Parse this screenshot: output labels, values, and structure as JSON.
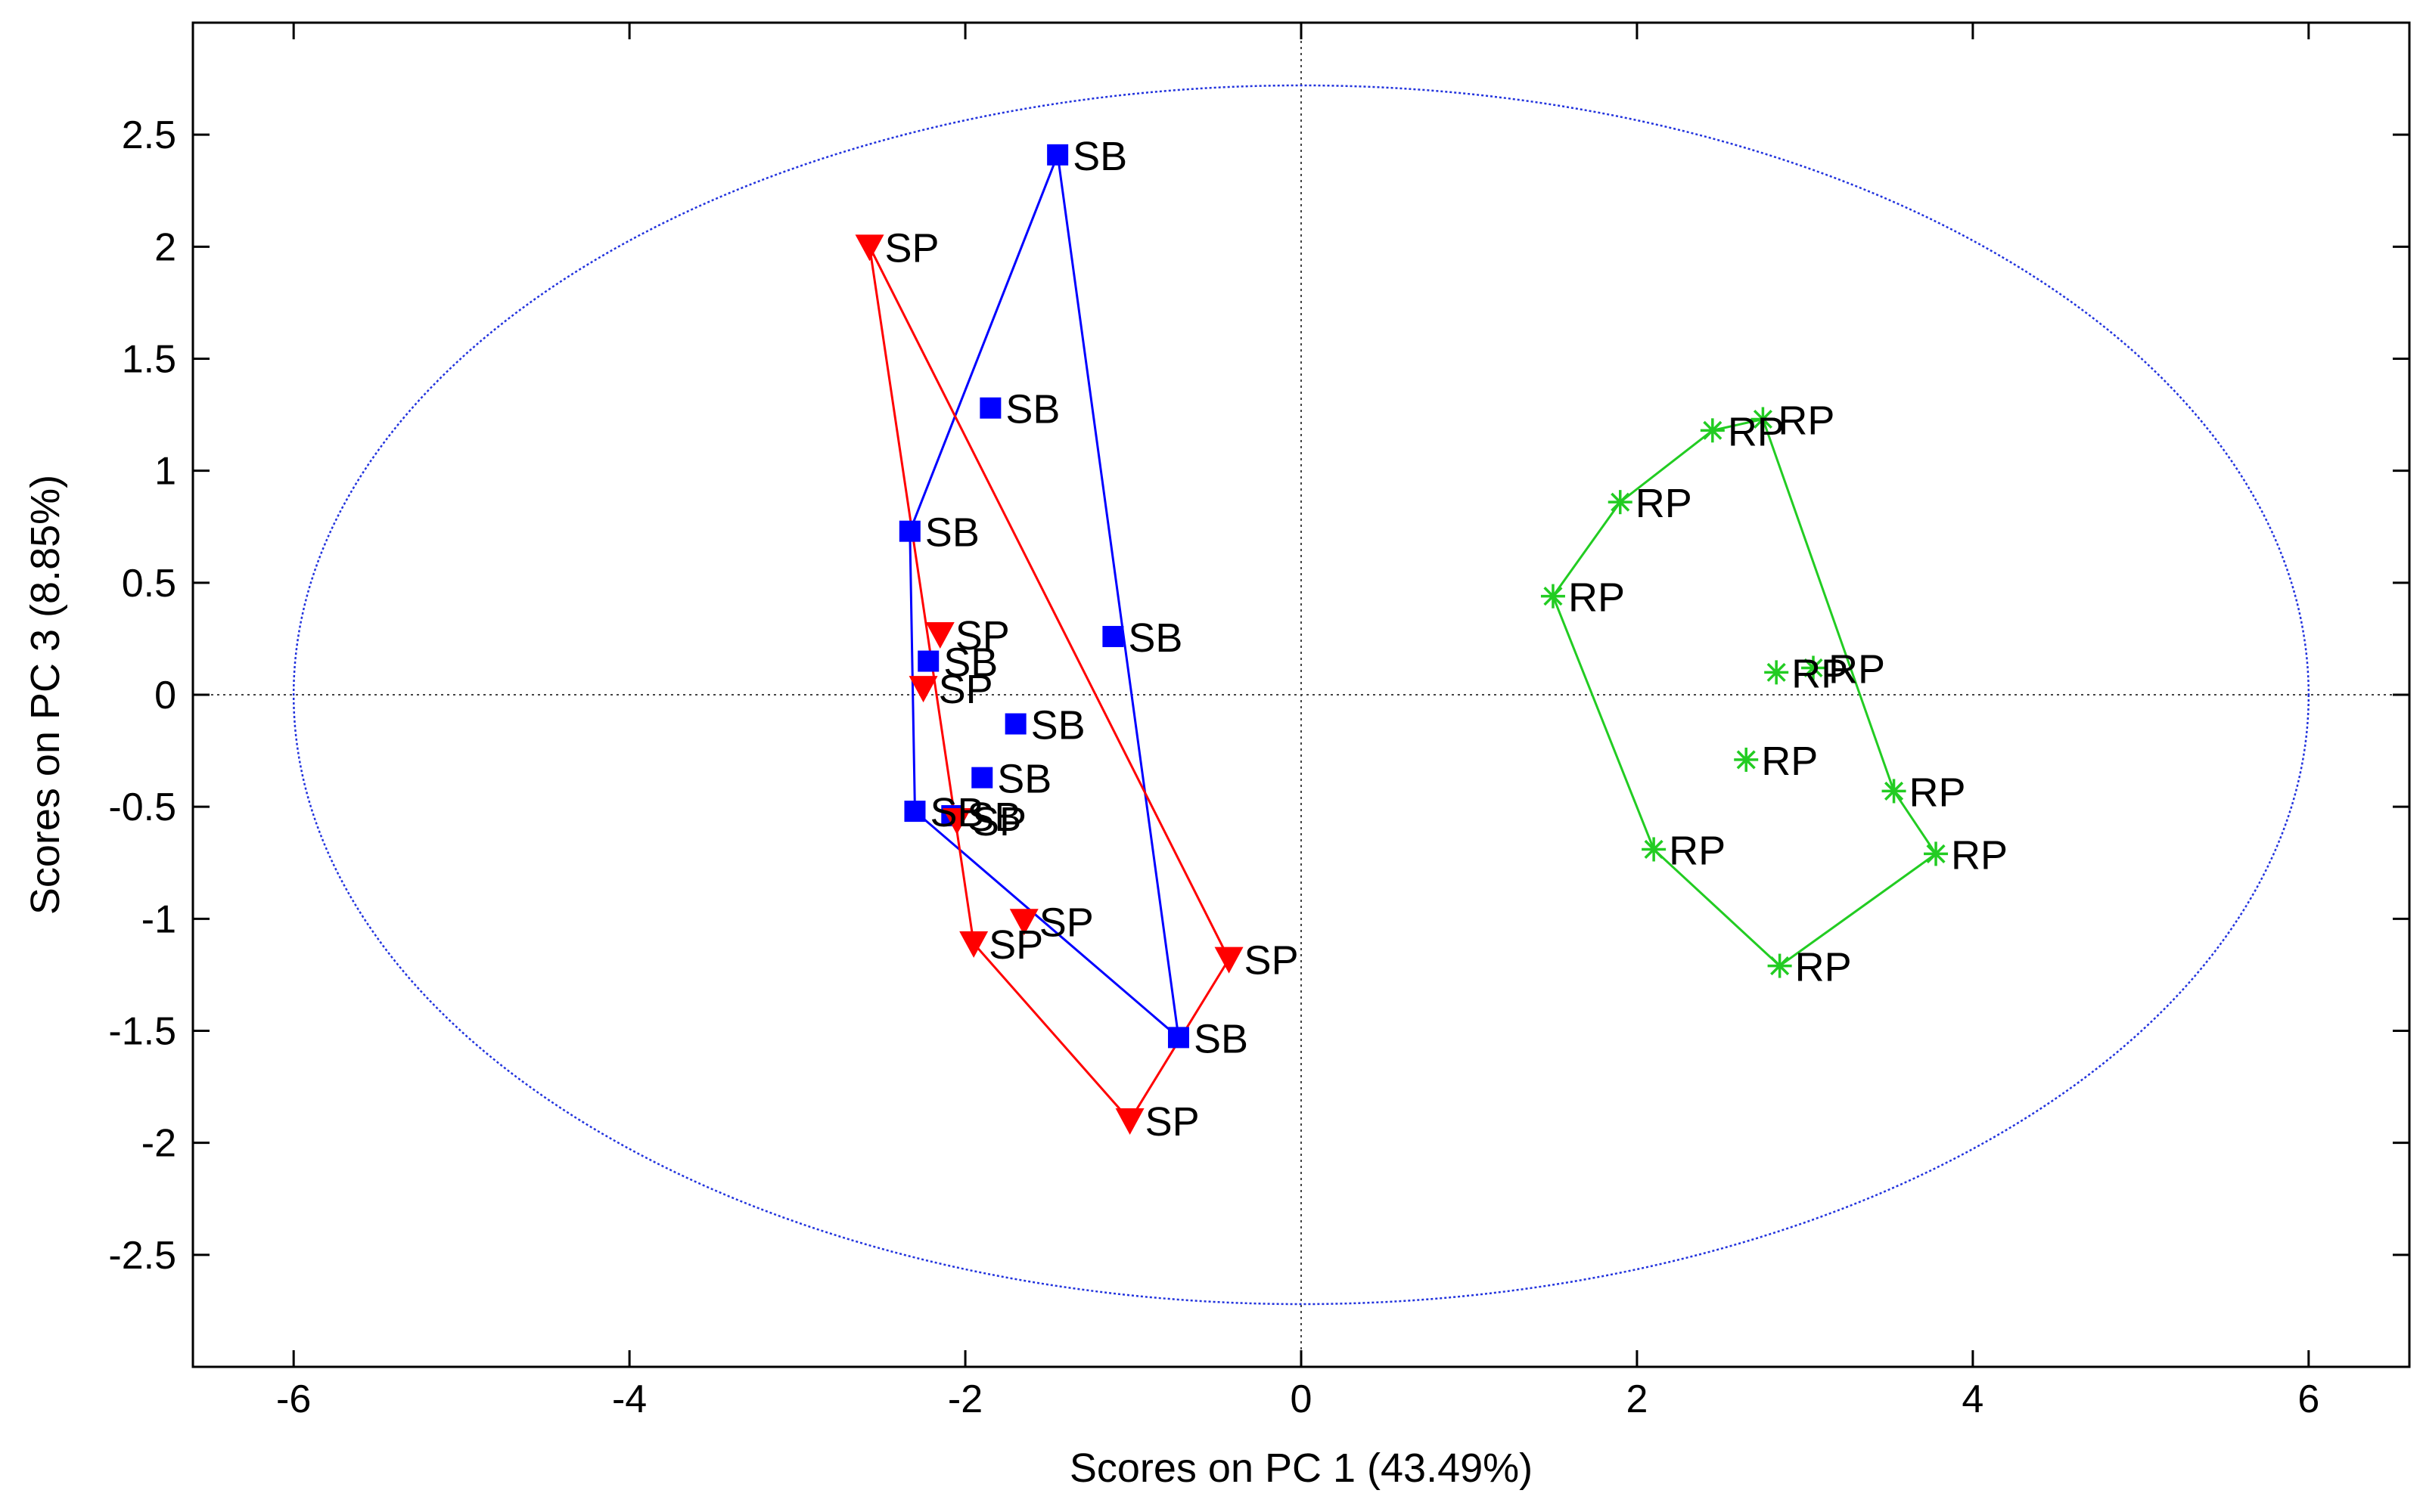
{
  "chart_data": {
    "type": "scatter",
    "title": "",
    "xlabel": "Scores on PC 1 (43.49%)",
    "ylabel": "Scores on PC 3 (8.85%)",
    "xlim": [
      -6.6,
      6.6
    ],
    "ylim": [
      -3.0,
      3.0
    ],
    "xticks": [
      -6,
      -4,
      -2,
      0,
      2,
      4,
      6
    ],
    "yticks": [
      -2.5,
      -2,
      -1.5,
      -1,
      -0.5,
      0,
      0.5,
      1,
      1.5,
      2,
      2.5
    ],
    "grid": false,
    "reference_lines": {
      "x": 0,
      "y": 0,
      "style": "dotted"
    },
    "confidence_ellipse": {
      "center": [
        0,
        0
      ],
      "x_radius": 6.0,
      "y_radius": 2.72,
      "color": "#2233dd"
    },
    "series": [
      {
        "name": "SB",
        "marker": "square",
        "color": "#0000ff",
        "points": [
          {
            "x": -1.45,
            "y": 2.41,
            "label": "SB"
          },
          {
            "x": -1.85,
            "y": 1.28,
            "label": "SB"
          },
          {
            "x": -2.33,
            "y": 0.73,
            "label": "SB"
          },
          {
            "x": -1.12,
            "y": 0.26,
            "label": "SB"
          },
          {
            "x": -2.22,
            "y": 0.15,
            "label": "SB"
          },
          {
            "x": -1.7,
            "y": -0.13,
            "label": "SB"
          },
          {
            "x": -1.9,
            "y": -0.37,
            "label": "SB"
          },
          {
            "x": -2.3,
            "y": -0.52,
            "label": "SB"
          },
          {
            "x": -2.08,
            "y": -0.54,
            "label": "SB"
          },
          {
            "x": -0.73,
            "y": -1.53,
            "label": "SB"
          }
        ],
        "hull_order": [
          0,
          9,
          7,
          2,
          0
        ]
      },
      {
        "name": "SP",
        "marker": "triangle-down",
        "color": "#ff0000",
        "points": [
          {
            "x": -2.57,
            "y": 2.0,
            "label": "SP"
          },
          {
            "x": -2.15,
            "y": 0.27,
            "label": "SP"
          },
          {
            "x": -2.25,
            "y": 0.03,
            "label": "SP"
          },
          {
            "x": -2.05,
            "y": -0.56,
            "label": "SP"
          },
          {
            "x": -1.65,
            "y": -1.01,
            "label": "SP"
          },
          {
            "x": -1.95,
            "y": -1.11,
            "label": "SP"
          },
          {
            "x": -0.43,
            "y": -1.18,
            "label": "SP"
          },
          {
            "x": -1.02,
            "y": -1.9,
            "label": "SP"
          }
        ],
        "hull_order": [
          0,
          6,
          7,
          5,
          0
        ]
      },
      {
        "name": "RP",
        "marker": "star",
        "color": "#22cc22",
        "points": [
          {
            "x": 2.75,
            "y": 1.23,
            "label": "RP"
          },
          {
            "x": 2.45,
            "y": 1.18,
            "label": "RP"
          },
          {
            "x": 1.9,
            "y": 0.86,
            "label": "RP"
          },
          {
            "x": 1.5,
            "y": 0.44,
            "label": "RP"
          },
          {
            "x": 2.83,
            "y": 0.1,
            "label": "RP"
          },
          {
            "x": 3.05,
            "y": 0.12,
            "label": "RP"
          },
          {
            "x": 2.65,
            "y": -0.29,
            "label": "RP"
          },
          {
            "x": 3.53,
            "y": -0.43,
            "label": "RP"
          },
          {
            "x": 2.1,
            "y": -0.69,
            "label": "RP"
          },
          {
            "x": 3.78,
            "y": -0.71,
            "label": "RP"
          },
          {
            "x": 2.85,
            "y": -1.21,
            "label": "RP"
          }
        ],
        "hull_order": [
          0,
          1,
          2,
          3,
          8,
          10,
          9,
          7,
          0
        ]
      }
    ]
  }
}
